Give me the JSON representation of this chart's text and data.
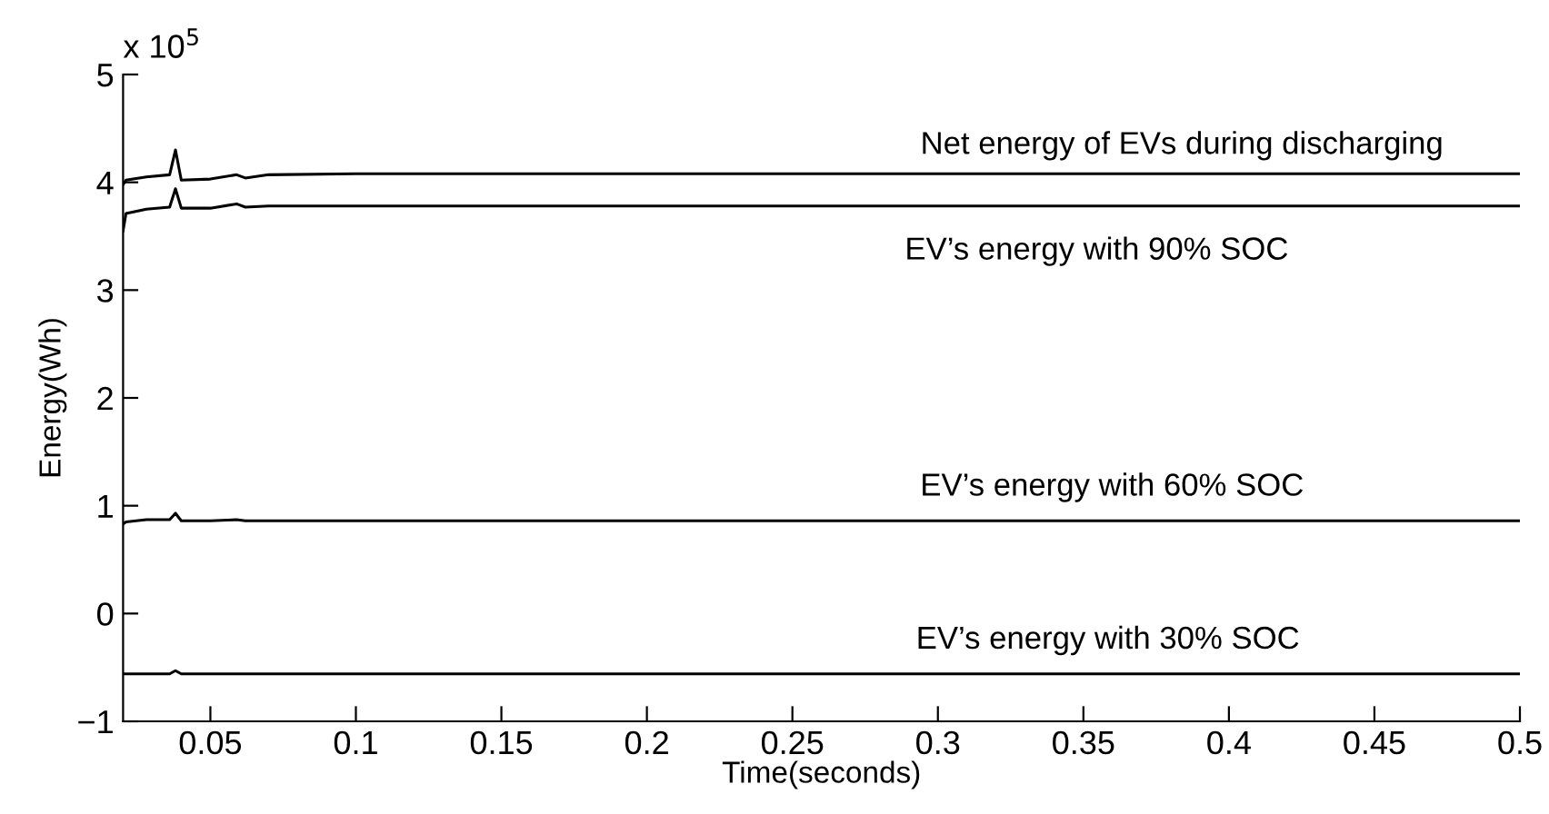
{
  "chart_data": {
    "type": "line",
    "xlabel": "Time(seconds)",
    "ylabel": "Energy(Wh)",
    "x": [
      0.02,
      0.021,
      0.028,
      0.036,
      0.038,
      0.04,
      0.05,
      0.059,
      0.062,
      0.07,
      0.1,
      0.5
    ],
    "series": [
      {
        "color": "#000000",
        "values": [
          3.98,
          4.02,
          4.05,
          4.07,
          4.3,
          4.02,
          4.03,
          4.07,
          4.04,
          4.07,
          4.08,
          4.08
        ]
      },
      {
        "color": "#000000",
        "values": [
          3.55,
          3.71,
          3.75,
          3.77,
          3.94,
          3.76,
          3.76,
          3.8,
          3.77,
          3.78,
          3.78,
          3.78
        ]
      },
      {
        "color": "#000000",
        "values": [
          0.83,
          0.85,
          0.87,
          0.87,
          0.93,
          0.86,
          0.86,
          0.87,
          0.86,
          0.86,
          0.86,
          0.86
        ]
      },
      {
        "color": "#000000",
        "values": [
          -0.56,
          -0.56,
          -0.56,
          -0.56,
          -0.53,
          -0.56,
          -0.56,
          -0.56,
          -0.56,
          -0.56,
          -0.56,
          -0.56
        ]
      }
    ],
    "annotations": [
      "x 10$^{5}$",
      "Net energy of EVs during discharging",
      "EV’s energy with 90% SOC",
      "EV’s energy with 60% SOC",
      "EV’s energy with 30% SOC"
    ],
    "xlim": [
      0.02,
      0.5
    ],
    "xticks": [
      0.05,
      0.1,
      0.15,
      0.2,
      0.25,
      0.3,
      0.35,
      0.4,
      0.45,
      0.5
    ],
    "ylim": [
      -1,
      5
    ],
    "yticks": [
      -1,
      0,
      1,
      2,
      3,
      4,
      5
    ],
    "grid": false,
    "legend": false,
    "marker": "none",
    "line_style": "solid"
  }
}
